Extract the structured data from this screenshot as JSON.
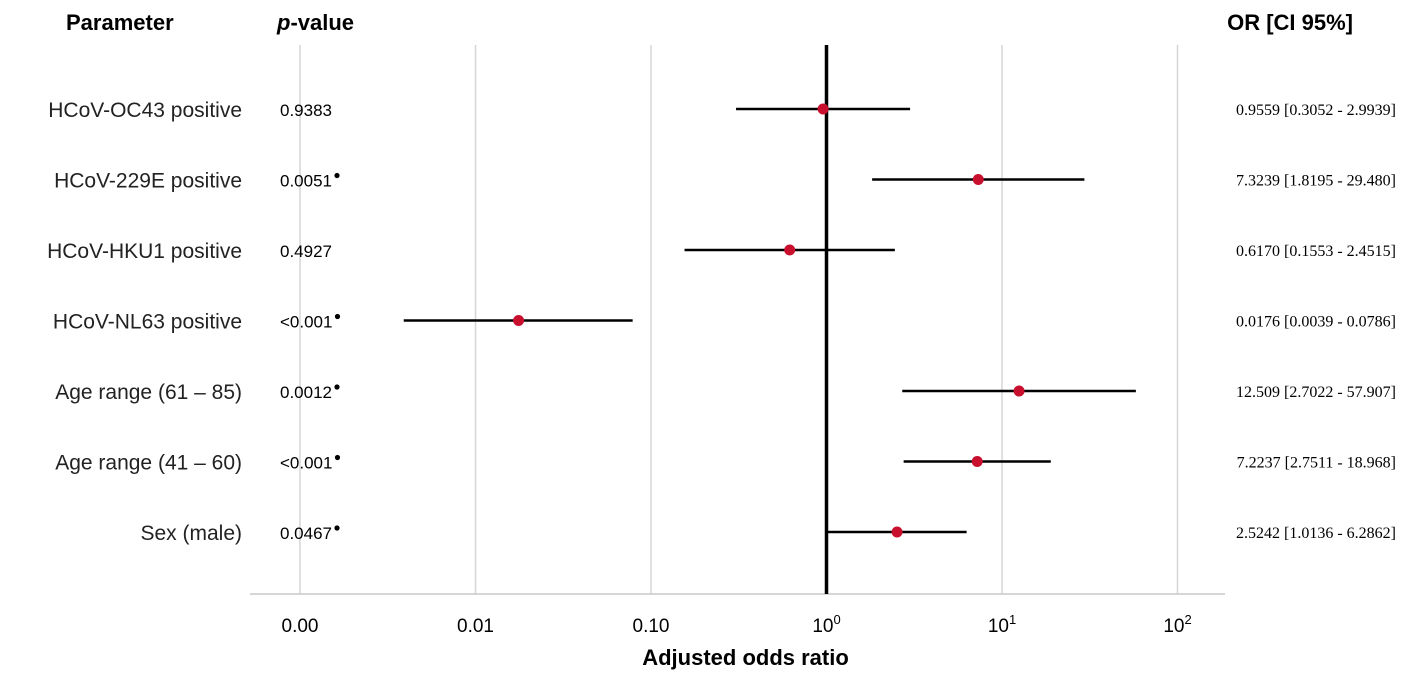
{
  "headers": {
    "parameter": "Parameter",
    "pvalue_italic": "p",
    "pvalue_rest": "-value",
    "or_ci": "OR [CI 95%]"
  },
  "chart_data": {
    "type": "forest",
    "xlabel": "Adjusted odds ratio",
    "x_scale": "log",
    "reference_line": 1,
    "x_ticks": [
      {
        "label": "0.00",
        "value": 0.001,
        "sup": ""
      },
      {
        "label": "0.01",
        "value": 0.01,
        "sup": ""
      },
      {
        "label": "0.10",
        "value": 0.1,
        "sup": ""
      },
      {
        "label": "10",
        "value": 1,
        "sup": "0"
      },
      {
        "label": "10",
        "value": 10,
        "sup": "1"
      },
      {
        "label": "10",
        "value": 100,
        "sup": "2"
      }
    ],
    "grid": true,
    "point_color": "#c8102e",
    "rows": [
      {
        "parameter": "HCoV-OC43 positive",
        "pvalue": "0.9383",
        "star": false,
        "or": 0.9559,
        "lo": 0.3052,
        "hi": 2.9939,
        "or_text": "0.9559 [0.3052 - 2.9939]"
      },
      {
        "parameter": "HCoV-229E positive",
        "pvalue": "0.0051",
        "star": true,
        "or": 7.3239,
        "lo": 1.8195,
        "hi": 29.48,
        "or_text": "7.3239 [1.8195 - 29.480]"
      },
      {
        "parameter": "HCoV-HKU1 positive",
        "pvalue": "0.4927",
        "star": false,
        "or": 0.617,
        "lo": 0.1553,
        "hi": 2.4515,
        "or_text": "0.6170 [0.1553 - 2.4515]"
      },
      {
        "parameter": "HCoV-NL63 positive",
        "pvalue": "<0.001",
        "star": true,
        "or": 0.0176,
        "lo": 0.0039,
        "hi": 0.0786,
        "or_text": "0.0176 [0.0039 - 0.0786]"
      },
      {
        "parameter": "Age range (61 – 85)",
        "pvalue": "0.0012",
        "star": true,
        "or": 12.509,
        "lo": 2.7022,
        "hi": 57.907,
        "or_text": "12.509 [2.7022 - 57.907]"
      },
      {
        "parameter": "Age range (41 – 60)",
        "pvalue": "<0.001",
        "star": true,
        "or": 7.2237,
        "lo": 2.7511,
        "hi": 18.968,
        "or_text": "7.2237 [2.7511 - 18.968]"
      },
      {
        "parameter": "Sex (male)",
        "pvalue": "0.0467",
        "star": true,
        "or": 2.5242,
        "lo": 1.0136,
        "hi": 6.2862,
        "or_text": "2.5242 [1.0136 - 6.2862]"
      }
    ]
  }
}
